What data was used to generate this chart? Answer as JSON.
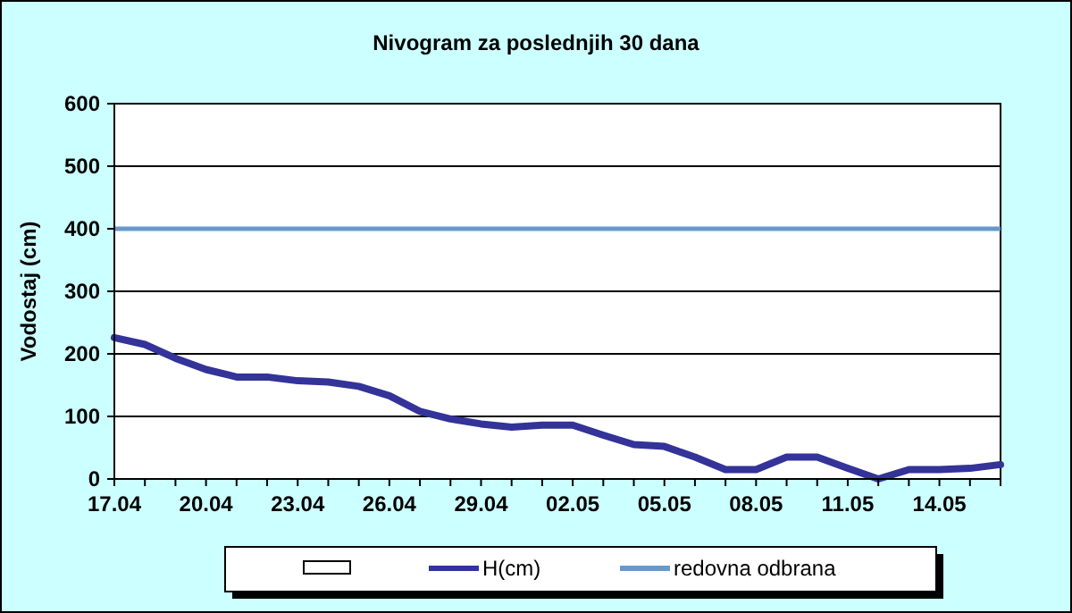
{
  "chart_data": {
    "type": "line",
    "title": "Nivogram za poslednjih 30 dana",
    "ylabel": "Vodostaj (cm)",
    "categories": [
      "17.04",
      null,
      null,
      "20.04",
      null,
      null,
      "23.04",
      null,
      null,
      "26.04",
      null,
      null,
      "29.04",
      null,
      null,
      "02.05",
      null,
      null,
      "05.05",
      null,
      null,
      "08.05",
      null,
      null,
      "11.05",
      null,
      null,
      "14.05",
      null,
      null
    ],
    "series": [
      {
        "name": "H(cm)",
        "color": "#333399",
        "values": [
          226,
          215,
          193,
          175,
          163,
          163,
          157,
          155,
          148,
          133,
          108,
          96,
          88,
          83,
          86,
          86,
          70,
          55,
          52,
          35,
          15,
          15,
          35,
          35,
          17,
          0,
          15,
          15,
          17,
          23
        ]
      }
    ],
    "ref_lines": [
      {
        "axis": "y",
        "value": 400,
        "label": "redovna odbrana",
        "color": "#6699cc"
      }
    ],
    "ylim": [
      0,
      600
    ],
    "yticks": [
      0,
      100,
      200,
      300,
      400,
      500,
      600
    ],
    "grid": "y",
    "legend": "bottom",
    "marker": "none",
    "line_style": "solid"
  }
}
